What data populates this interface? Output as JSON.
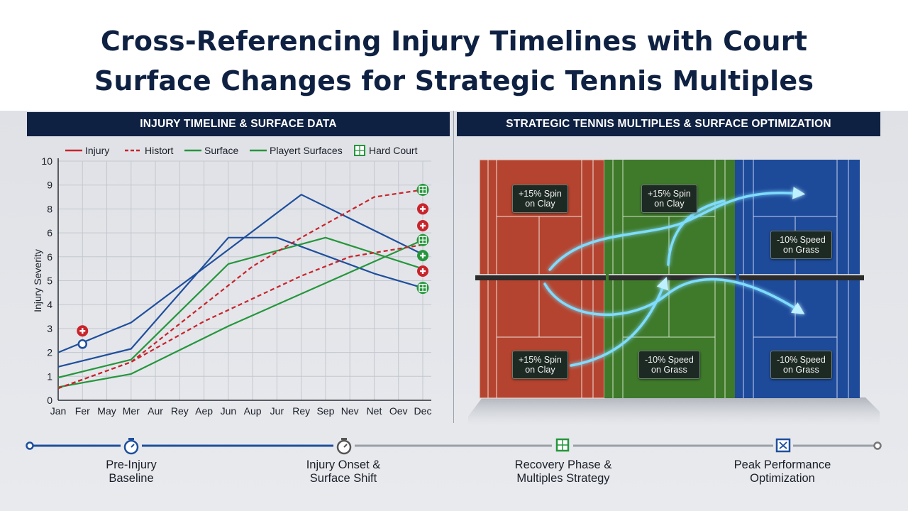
{
  "title": {
    "line1": "Cross-Referencing Injury Timelines with Court",
    "line2": "Surface Changes for Strategic Tennis Multiples"
  },
  "left_panel": {
    "header": "INJURY TIMELINE & SURFACE DATA"
  },
  "right_panel": {
    "header": "STRATEGIC TENNIS MULTIPLES & SURFACE OPTIMIZATION",
    "labels": [
      {
        "line1": "+15% Spin",
        "line2": "on Clay"
      },
      {
        "line1": "+15% Spin",
        "line2": "on Clay"
      },
      {
        "line1": "-10% Speed",
        "line2": "on Grass"
      },
      {
        "line1": "+15% Spin",
        "line2": "on Clay"
      },
      {
        "line1": "-10% Speed",
        "line2": "on Grass"
      },
      {
        "line1": "-10% Speed",
        "line2": "on Grass"
      }
    ],
    "colors": {
      "clay": "#b4442f",
      "grass": "#3f7a2b",
      "hard": "#1e4a9a",
      "trajectory": "#7fdcff"
    }
  },
  "chart_data": {
    "type": "line",
    "ylabel": "Injury Severity",
    "xlabel": "",
    "ylim": [
      0,
      10
    ],
    "y_ticks": [
      "0",
      "1",
      "2",
      "3",
      "4",
      "5",
      "6",
      "6",
      "8",
      "9",
      "10"
    ],
    "x": [
      "Jan",
      "Fer",
      "May",
      "Mer",
      "Aur",
      "Rey",
      "Aep",
      "Jun",
      "Aup",
      "Jur",
      "Rey",
      "Sep",
      "Nev",
      "Net",
      "Oev",
      "Dec"
    ],
    "legend": [
      {
        "label": "Injury",
        "color": "#c8242c",
        "dash": false
      },
      {
        "label": "Histort",
        "color": "#c8242c",
        "dash": true
      },
      {
        "label": "Surface",
        "color": "#25963c",
        "dash": false
      },
      {
        "label": "Playert Surfaces",
        "color": "#25963c",
        "dash": false
      },
      {
        "label": "Hard Court",
        "color": "#25963c",
        "icon": "hard-court-icon"
      }
    ],
    "series": [
      {
        "color": "#1f4f9c",
        "dash": false,
        "points": [
          [
            0,
            2.0
          ],
          [
            3,
            3.25
          ],
          [
            7,
            6.3
          ],
          [
            10,
            8.6
          ],
          [
            15,
            6.1
          ]
        ]
      },
      {
        "color": "#1f4f9c",
        "dash": false,
        "points": [
          [
            0,
            1.4
          ],
          [
            3,
            2.15
          ],
          [
            7,
            6.8
          ],
          [
            9,
            6.8
          ],
          [
            13,
            5.3
          ],
          [
            15,
            4.7
          ]
        ]
      },
      {
        "color": "#25963c",
        "dash": false,
        "points": [
          [
            0,
            0.95
          ],
          [
            3,
            1.7
          ],
          [
            7,
            5.7
          ],
          [
            11,
            6.8
          ],
          [
            15,
            5.5
          ]
        ]
      },
      {
        "color": "#25963c",
        "dash": false,
        "points": [
          [
            0,
            0.55
          ],
          [
            3,
            1.1
          ],
          [
            7,
            3.1
          ],
          [
            11,
            4.9
          ],
          [
            15,
            6.7
          ]
        ]
      },
      {
        "color": "#c8242c",
        "dash": true,
        "points": [
          [
            0,
            0.5
          ],
          [
            3,
            1.6
          ],
          [
            5,
            3.2
          ],
          [
            8,
            5.6
          ],
          [
            10,
            6.8
          ],
          [
            13,
            8.5
          ],
          [
            15,
            8.8
          ]
        ]
      },
      {
        "color": "#c8242c",
        "dash": true,
        "points": [
          [
            0,
            0.5
          ],
          [
            3,
            1.6
          ],
          [
            6,
            3.3
          ],
          [
            10,
            5.2
          ],
          [
            12,
            6.0
          ],
          [
            15,
            6.5
          ]
        ]
      }
    ],
    "markers": [
      {
        "x": 1,
        "y": 2.9,
        "icon": "plus-icon",
        "color": "#c8242c"
      },
      {
        "x": 1,
        "y": 2.35,
        "icon": "ring-icon",
        "color": "#1f4f9c"
      },
      {
        "x": 15,
        "y": 8.8,
        "icon": "hard-court-icon",
        "color": "#25963c"
      },
      {
        "x": 15,
        "y": 8.0,
        "icon": "plus-icon",
        "color": "#c8242c"
      },
      {
        "x": 15,
        "y": 7.3,
        "icon": "plus-icon",
        "color": "#c8242c"
      },
      {
        "x": 15,
        "y": 6.7,
        "icon": "hard-court-icon",
        "color": "#25963c"
      },
      {
        "x": 15,
        "y": 6.05,
        "icon": "plus-icon",
        "color": "#25963c"
      },
      {
        "x": 15,
        "y": 5.4,
        "icon": "plus-icon",
        "color": "#c8242c"
      },
      {
        "x": 15,
        "y": 4.7,
        "icon": "hard-court-icon",
        "color": "#25963c"
      }
    ]
  },
  "timeline": {
    "stages": [
      {
        "line1": "Pre-Injury",
        "line2": "Baseline",
        "icon": "stopwatch-icon",
        "color": "#1f4f9c"
      },
      {
        "line1": "Injury Onset &",
        "line2": "Surface Shift",
        "icon": "stopwatch-icon",
        "color": "#555555"
      },
      {
        "line1": "Recovery Phase &",
        "line2": "Multiples Strategy",
        "icon": "hard-court-icon",
        "color": "#25963c"
      },
      {
        "line1": "Peak Performance",
        "line2": "Optimization",
        "icon": "court-net-icon",
        "color": "#1f4f9c"
      }
    ]
  }
}
